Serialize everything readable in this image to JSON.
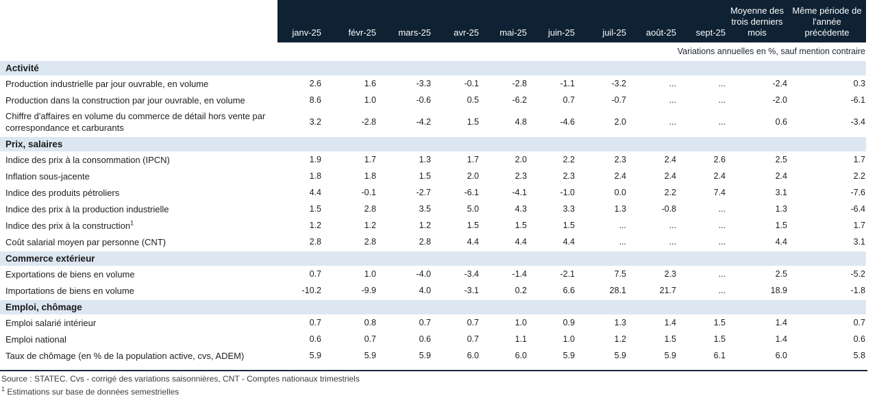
{
  "table": {
    "columns": [
      "janv-25",
      "févr-25",
      "mars-25",
      "avr-25",
      "mai-25",
      "juin-25",
      "juil-25",
      "août-25",
      "sept-25",
      "Moyenne des trois derniers mois",
      "Même période de l'année précédente"
    ],
    "units_note": "Variations annuelles en %, sauf mention contraire",
    "sections": [
      {
        "title": "Activité",
        "rows": [
          {
            "label": "Production industrielle par jour ouvrable, en volume",
            "values": [
              "2.6",
              "1.6",
              "-3.3",
              "-0.1",
              "-2.8",
              "-1.1",
              "-3.2",
              "...",
              "...",
              "-2.4",
              "0.3"
            ]
          },
          {
            "label": "Production dans la construction par jour ouvrable, en volume",
            "values": [
              "8.6",
              "1.0",
              "-0.6",
              "0.5",
              "-6.2",
              "0.7",
              "-0.7",
              "...",
              "...",
              "-2.0",
              "-6.1"
            ]
          },
          {
            "label": "Chiffre d'affaires en volume du commerce de détail hors vente par correspondance et carburants",
            "values": [
              "3.2",
              "-2.8",
              "-4.2",
              "1.5",
              "4.8",
              "-4.6",
              "2.0",
              "...",
              "...",
              "0.6",
              "-3.4"
            ]
          }
        ]
      },
      {
        "title": "Prix, salaires",
        "rows": [
          {
            "label": "Indice des prix à la consommation (IPCN)",
            "values": [
              "1.9",
              "1.7",
              "1.3",
              "1.7",
              "2.0",
              "2.2",
              "2.3",
              "2.4",
              "2.6",
              "2.5",
              "1.7"
            ]
          },
          {
            "label": "Inflation sous-jacente",
            "values": [
              "1.8",
              "1.8",
              "1.5",
              "2.0",
              "2.3",
              "2.3",
              "2.4",
              "2.4",
              "2.4",
              "2.4",
              "2.2"
            ]
          },
          {
            "label": "Indice des produits pétroliers",
            "values": [
              "4.4",
              "-0.1",
              "-2.7",
              "-6.1",
              "-4.1",
              "-1.0",
              "0.0",
              "2.2",
              "7.4",
              "3.1",
              "-7.6"
            ]
          },
          {
            "label": "Indice des prix à la production industrielle",
            "values": [
              "1.5",
              "2.8",
              "3.5",
              "5.0",
              "4.3",
              "3.3",
              "1.3",
              "-0.8",
              "...",
              "1.3",
              "-6.4"
            ]
          },
          {
            "label": "Indice des prix à la construction",
            "sup": "1",
            "values": [
              "1.2",
              "1.2",
              "1.2",
              "1.5",
              "1.5",
              "1.5",
              "...",
              "...",
              "...",
              "1.5",
              "1.7"
            ]
          },
          {
            "label": "Coût salarial moyen par personne (CNT)",
            "values": [
              "2.8",
              "2.8",
              "2.8",
              "4.4",
              "4.4",
              "4.4",
              "...",
              "...",
              "...",
              "4.4",
              "3.1"
            ]
          }
        ]
      },
      {
        "title": "Commerce extérieur",
        "rows": [
          {
            "label": "Exportations de biens en volume",
            "values": [
              "0.7",
              "1.0",
              "-4.0",
              "-3.4",
              "-1.4",
              "-2.1",
              "7.5",
              "2.3",
              "...",
              "2.5",
              "-5.2"
            ]
          },
          {
            "label": "Importations de biens en volume",
            "values": [
              "-10.2",
              "-9.9",
              "4.0",
              "-3.1",
              "0.2",
              "6.6",
              "28.1",
              "21.7",
              "...",
              "18.9",
              "-1.8"
            ]
          }
        ]
      },
      {
        "title": "Emploi, chômage",
        "rows": [
          {
            "label": "Emploi salarié intérieur",
            "values": [
              "0.7",
              "0.8",
              "0.7",
              "0.7",
              "1.0",
              "0.9",
              "1.3",
              "1.4",
              "1.5",
              "1.4",
              "0.7"
            ]
          },
          {
            "label": "Emploi national",
            "values": [
              "0.6",
              "0.7",
              "0.6",
              "0.7",
              "1.1",
              "1.0",
              "1.2",
              "1.5",
              "1.5",
              "1.4",
              "0.6"
            ]
          },
          {
            "label": "Taux de chômage (en % de la population active, cvs, ADEM)",
            "values": [
              "5.9",
              "5.9",
              "5.9",
              "6.0",
              "6.0",
              "5.9",
              "5.9",
              "5.9",
              "6.1",
              "6.0",
              "5.8"
            ]
          }
        ]
      }
    ],
    "footer": {
      "source_note": "Source : STATEC. Cvs - corrigé des variations saisonnières, CNT - Comptes nationaux trimestriels",
      "footnote_marker": "1",
      "footnote_text": "Estimations sur base de données semestrielles"
    }
  },
  "colors": {
    "header_bg": "#0e2234",
    "band_bg": "#dce7f2",
    "rule_color": "#16283a"
  }
}
